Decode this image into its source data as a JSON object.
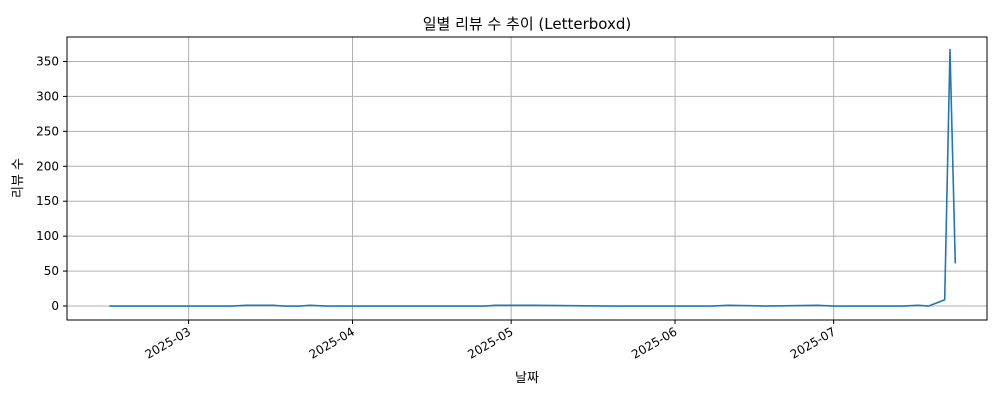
{
  "chart_data": {
    "type": "line",
    "title": "일별 리뷰 수 추이 (Letterboxd)",
    "xlabel": "날짜",
    "ylabel": "리뷰 수",
    "xlim": [
      "2025-02-06",
      "2025-07-30"
    ],
    "ylim": [
      -20,
      385
    ],
    "grid": true,
    "line_color": "#1f77b4",
    "x_ticks": [
      {
        "date": "2025-03-01",
        "label": "2025-03"
      },
      {
        "date": "2025-04-01",
        "label": "2025-04"
      },
      {
        "date": "2025-05-01",
        "label": "2025-05"
      },
      {
        "date": "2025-06-01",
        "label": "2025-06"
      },
      {
        "date": "2025-07-01",
        "label": "2025-07"
      }
    ],
    "y_ticks": [
      0,
      50,
      100,
      150,
      200,
      250,
      300,
      350
    ],
    "series": [
      {
        "points": [
          {
            "x": "2025-02-14",
            "y": 0
          },
          {
            "x": "2025-03-09",
            "y": 0
          },
          {
            "x": "2025-03-12",
            "y": 1
          },
          {
            "x": "2025-03-17",
            "y": 1
          },
          {
            "x": "2025-03-19",
            "y": 0
          },
          {
            "x": "2025-03-22",
            "y": 0
          },
          {
            "x": "2025-03-24",
            "y": 1
          },
          {
            "x": "2025-03-27",
            "y": 0
          },
          {
            "x": "2025-04-26",
            "y": 0
          },
          {
            "x": "2025-04-28",
            "y": 1
          },
          {
            "x": "2025-05-05",
            "y": 1
          },
          {
            "x": "2025-05-20",
            "y": 0
          },
          {
            "x": "2025-06-08",
            "y": 0
          },
          {
            "x": "2025-06-11",
            "y": 1
          },
          {
            "x": "2025-06-18",
            "y": 0
          },
          {
            "x": "2025-06-28",
            "y": 1
          },
          {
            "x": "2025-07-01",
            "y": 0
          },
          {
            "x": "2025-07-14",
            "y": 0
          },
          {
            "x": "2025-07-17",
            "y": 1
          },
          {
            "x": "2025-07-19",
            "y": 0
          },
          {
            "x": "2025-07-22",
            "y": 9
          },
          {
            "x": "2025-07-23",
            "y": 367
          },
          {
            "x": "2025-07-24",
            "y": 61
          }
        ]
      }
    ]
  }
}
